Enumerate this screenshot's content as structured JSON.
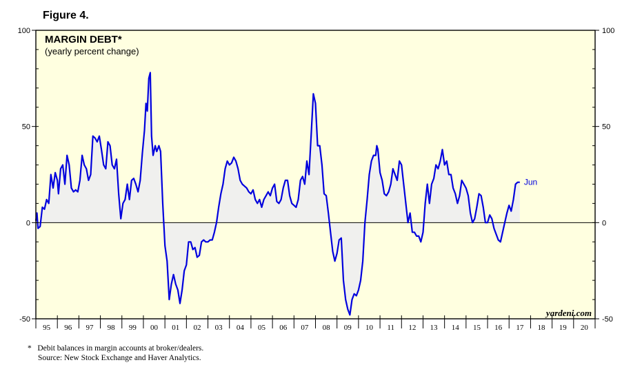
{
  "figure_label": "Figure 4.",
  "brand": "yardeni.com",
  "footnotes": [
    {
      "marker": "*",
      "text": "Debit balances in margin accounts at broker/dealers."
    },
    {
      "marker": "",
      "text": "Source: New Stock Exchange and Haver Analytics."
    }
  ],
  "colors": {
    "plot_background": "#ffffe0",
    "series_line": "#0000dd",
    "fill_area": "#f0f0ee",
    "zero_line": "#000000"
  },
  "chart_data": {
    "type": "line",
    "title": "MARGIN DEBT*",
    "subtitle": "(yearly percent change)",
    "ylim": [
      -50,
      100
    ],
    "y_ticks": [
      -50,
      0,
      50,
      100
    ],
    "y_tick_labels": [
      "-50",
      "0",
      "50",
      "100"
    ],
    "xlim": [
      1995.0,
      2021.0
    ],
    "x_tick_labels": [
      "95",
      "96",
      "97",
      "98",
      "99",
      "00",
      "01",
      "02",
      "03",
      "04",
      "05",
      "06",
      "07",
      "08",
      "09",
      "10",
      "11",
      "12",
      "13",
      "14",
      "15",
      "16",
      "17",
      "18",
      "19",
      "20"
    ],
    "grid": false,
    "fill_to_zero": true,
    "last_point_label": "Jun",
    "series": [
      {
        "values": [
          [
            1995.0,
            1
          ],
          [
            1995.05,
            5
          ],
          [
            1995.1,
            -3
          ],
          [
            1995.2,
            -2
          ],
          [
            1995.3,
            8
          ],
          [
            1995.4,
            7
          ],
          [
            1995.5,
            12
          ],
          [
            1995.6,
            10
          ],
          [
            1995.7,
            25
          ],
          [
            1995.8,
            18
          ],
          [
            1995.9,
            26
          ],
          [
            1996.0,
            22
          ],
          [
            1996.05,
            15
          ],
          [
            1996.15,
            28
          ],
          [
            1996.25,
            30
          ],
          [
            1996.35,
            20
          ],
          [
            1996.45,
            35
          ],
          [
            1996.55,
            30
          ],
          [
            1996.65,
            18
          ],
          [
            1996.75,
            16
          ],
          [
            1996.85,
            17
          ],
          [
            1996.95,
            16
          ],
          [
            1997.05,
            22
          ],
          [
            1997.15,
            35
          ],
          [
            1997.25,
            30
          ],
          [
            1997.35,
            28
          ],
          [
            1997.45,
            22
          ],
          [
            1997.55,
            25
          ],
          [
            1997.65,
            45
          ],
          [
            1997.75,
            44
          ],
          [
            1997.85,
            42
          ],
          [
            1997.95,
            45
          ],
          [
            1998.05,
            38
          ],
          [
            1998.15,
            30
          ],
          [
            1998.25,
            28
          ],
          [
            1998.35,
            42
          ],
          [
            1998.45,
            40
          ],
          [
            1998.55,
            30
          ],
          [
            1998.65,
            28
          ],
          [
            1998.75,
            33
          ],
          [
            1998.85,
            15
          ],
          [
            1998.95,
            2
          ],
          [
            1999.05,
            10
          ],
          [
            1999.15,
            12
          ],
          [
            1999.25,
            20
          ],
          [
            1999.35,
            12
          ],
          [
            1999.45,
            22
          ],
          [
            1999.55,
            23
          ],
          [
            1999.65,
            20
          ],
          [
            1999.75,
            16
          ],
          [
            1999.85,
            22
          ],
          [
            1999.95,
            36
          ],
          [
            2000.05,
            48
          ],
          [
            2000.12,
            62
          ],
          [
            2000.18,
            58
          ],
          [
            2000.25,
            75
          ],
          [
            2000.32,
            78
          ],
          [
            2000.38,
            45
          ],
          [
            2000.45,
            35
          ],
          [
            2000.55,
            40
          ],
          [
            2000.62,
            37
          ],
          [
            2000.72,
            40
          ],
          [
            2000.8,
            37
          ],
          [
            2000.9,
            10
          ],
          [
            2001.0,
            -12
          ],
          [
            2001.1,
            -20
          ],
          [
            2001.2,
            -40
          ],
          [
            2001.3,
            -32
          ],
          [
            2001.4,
            -27
          ],
          [
            2001.5,
            -32
          ],
          [
            2001.6,
            -35
          ],
          [
            2001.7,
            -42
          ],
          [
            2001.8,
            -35
          ],
          [
            2001.9,
            -25
          ],
          [
            2002.0,
            -22
          ],
          [
            2002.1,
            -10
          ],
          [
            2002.2,
            -10
          ],
          [
            2002.3,
            -14
          ],
          [
            2002.4,
            -13
          ],
          [
            2002.5,
            -18
          ],
          [
            2002.6,
            -17
          ],
          [
            2002.7,
            -10
          ],
          [
            2002.8,
            -9
          ],
          [
            2002.9,
            -10
          ],
          [
            2003.0,
            -10
          ],
          [
            2003.1,
            -9
          ],
          [
            2003.2,
            -9
          ],
          [
            2003.3,
            -5
          ],
          [
            2003.4,
            0
          ],
          [
            2003.5,
            8
          ],
          [
            2003.6,
            15
          ],
          [
            2003.7,
            20
          ],
          [
            2003.8,
            28
          ],
          [
            2003.9,
            32
          ],
          [
            2004.0,
            30
          ],
          [
            2004.1,
            31
          ],
          [
            2004.2,
            34
          ],
          [
            2004.3,
            32
          ],
          [
            2004.4,
            28
          ],
          [
            2004.5,
            22
          ],
          [
            2004.6,
            20
          ],
          [
            2004.7,
            19
          ],
          [
            2004.8,
            18
          ],
          [
            2004.9,
            16
          ],
          [
            2005.0,
            15
          ],
          [
            2005.1,
            17
          ],
          [
            2005.2,
            12
          ],
          [
            2005.3,
            10
          ],
          [
            2005.4,
            12
          ],
          [
            2005.5,
            8
          ],
          [
            2005.6,
            12
          ],
          [
            2005.7,
            14
          ],
          [
            2005.8,
            16
          ],
          [
            2005.9,
            14
          ],
          [
            2006.0,
            18
          ],
          [
            2006.1,
            20
          ],
          [
            2006.2,
            11
          ],
          [
            2006.3,
            10
          ],
          [
            2006.4,
            12
          ],
          [
            2006.5,
            18
          ],
          [
            2006.6,
            22
          ],
          [
            2006.7,
            22
          ],
          [
            2006.8,
            14
          ],
          [
            2006.9,
            10
          ],
          [
            2007.0,
            9
          ],
          [
            2007.1,
            8
          ],
          [
            2007.2,
            12
          ],
          [
            2007.3,
            22
          ],
          [
            2007.4,
            24
          ],
          [
            2007.5,
            20
          ],
          [
            2007.6,
            32
          ],
          [
            2007.7,
            25
          ],
          [
            2007.8,
            46
          ],
          [
            2007.9,
            67
          ],
          [
            2008.0,
            62
          ],
          [
            2008.1,
            40
          ],
          [
            2008.2,
            40
          ],
          [
            2008.3,
            30
          ],
          [
            2008.4,
            15
          ],
          [
            2008.5,
            14
          ],
          [
            2008.6,
            5
          ],
          [
            2008.7,
            -5
          ],
          [
            2008.8,
            -15
          ],
          [
            2008.9,
            -20
          ],
          [
            2009.0,
            -16
          ],
          [
            2009.1,
            -9
          ],
          [
            2009.2,
            -8
          ],
          [
            2009.3,
            -30
          ],
          [
            2009.4,
            -40
          ],
          [
            2009.5,
            -45
          ],
          [
            2009.6,
            -48
          ],
          [
            2009.7,
            -40
          ],
          [
            2009.8,
            -37
          ],
          [
            2009.9,
            -38
          ],
          [
            2010.0,
            -35
          ],
          [
            2010.1,
            -30
          ],
          [
            2010.2,
            -20
          ],
          [
            2010.3,
            0
          ],
          [
            2010.4,
            12
          ],
          [
            2010.5,
            25
          ],
          [
            2010.6,
            32
          ],
          [
            2010.7,
            35
          ],
          [
            2010.8,
            35
          ],
          [
            2010.85,
            40
          ],
          [
            2010.9,
            38
          ],
          [
            2011.0,
            26
          ],
          [
            2011.1,
            22
          ],
          [
            2011.2,
            15
          ],
          [
            2011.3,
            14
          ],
          [
            2011.4,
            16
          ],
          [
            2011.5,
            20
          ],
          [
            2011.6,
            28
          ],
          [
            2011.7,
            25
          ],
          [
            2011.8,
            22
          ],
          [
            2011.9,
            32
          ],
          [
            2012.0,
            30
          ],
          [
            2012.1,
            20
          ],
          [
            2012.2,
            10
          ],
          [
            2012.3,
            0
          ],
          [
            2012.4,
            5
          ],
          [
            2012.5,
            -5
          ],
          [
            2012.6,
            -5
          ],
          [
            2012.7,
            -7
          ],
          [
            2012.8,
            -7
          ],
          [
            2012.9,
            -10
          ],
          [
            2013.0,
            -5
          ],
          [
            2013.1,
            10
          ],
          [
            2013.2,
            20
          ],
          [
            2013.3,
            10
          ],
          [
            2013.4,
            20
          ],
          [
            2013.5,
            23
          ],
          [
            2013.6,
            30
          ],
          [
            2013.7,
            28
          ],
          [
            2013.8,
            32
          ],
          [
            2013.9,
            38
          ],
          [
            2014.0,
            30
          ],
          [
            2014.1,
            32
          ],
          [
            2014.2,
            25
          ],
          [
            2014.3,
            25
          ],
          [
            2014.4,
            18
          ],
          [
            2014.5,
            15
          ],
          [
            2014.6,
            10
          ],
          [
            2014.7,
            14
          ],
          [
            2014.8,
            22
          ],
          [
            2014.9,
            20
          ],
          [
            2015.0,
            18
          ],
          [
            2015.1,
            14
          ],
          [
            2015.2,
            5
          ],
          [
            2015.3,
            0
          ],
          [
            2015.4,
            2
          ],
          [
            2015.5,
            8
          ],
          [
            2015.6,
            15
          ],
          [
            2015.7,
            14
          ],
          [
            2015.8,
            8
          ],
          [
            2015.9,
            0
          ],
          [
            2016.0,
            0
          ],
          [
            2016.1,
            4
          ],
          [
            2016.2,
            2
          ],
          [
            2016.3,
            -3
          ],
          [
            2016.4,
            -6
          ],
          [
            2016.5,
            -9
          ],
          [
            2016.6,
            -10
          ],
          [
            2016.7,
            -5
          ],
          [
            2016.8,
            0
          ],
          [
            2016.9,
            5
          ],
          [
            2017.0,
            9
          ],
          [
            2017.1,
            6
          ],
          [
            2017.2,
            12
          ],
          [
            2017.3,
            20
          ],
          [
            2017.4,
            21
          ],
          [
            2017.5,
            21
          ]
        ]
      }
    ]
  }
}
